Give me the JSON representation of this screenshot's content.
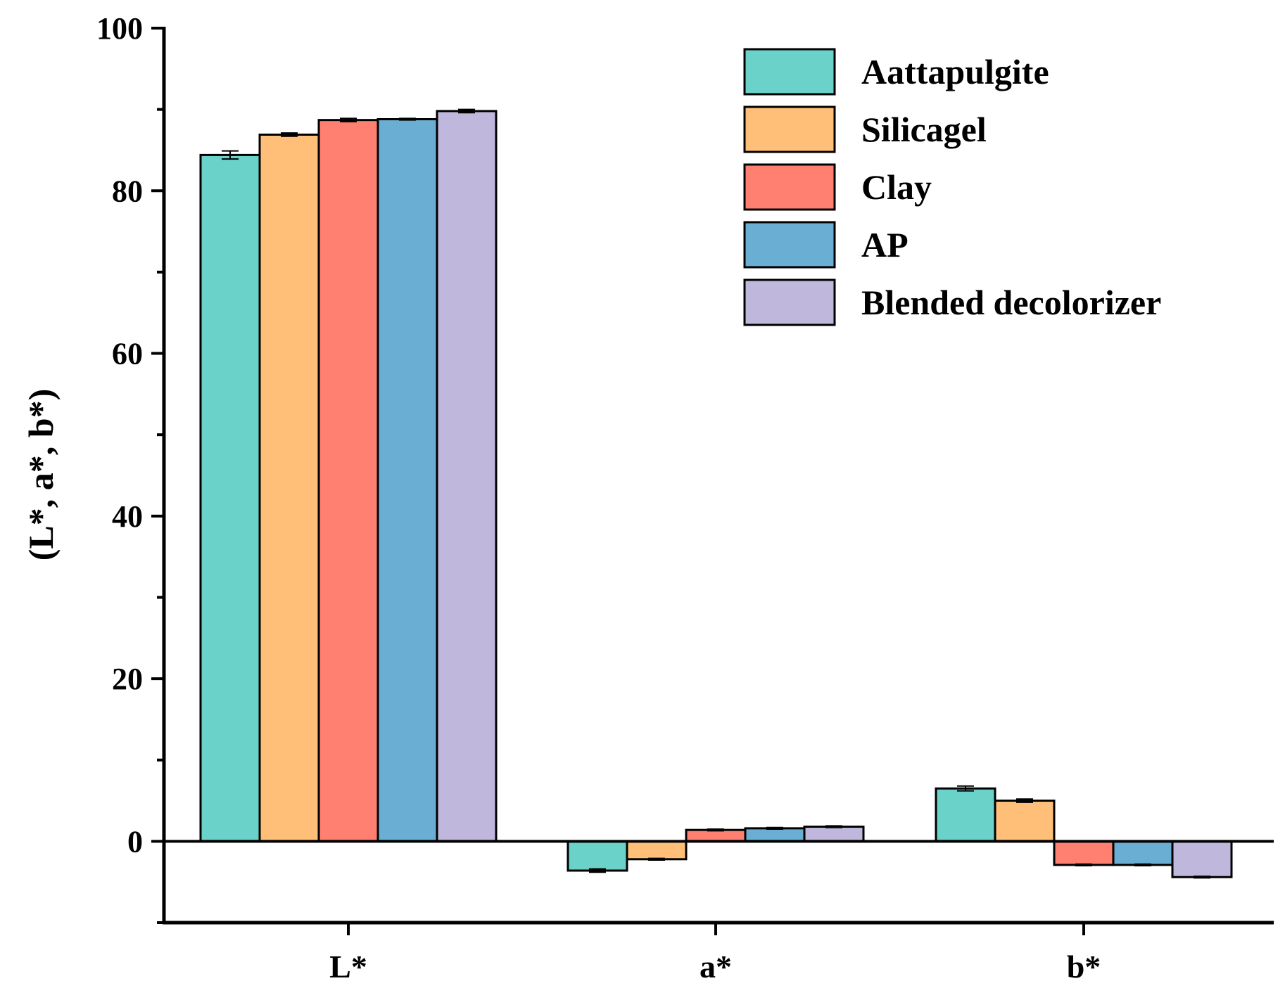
{
  "chart_data": {
    "type": "bar",
    "title": "",
    "xlabel": "",
    "ylabel": "(L*, a*, b*)",
    "categories": [
      "L*",
      "a*",
      "b*"
    ],
    "ylim": [
      -10,
      100
    ],
    "yticks": [
      0,
      20,
      40,
      60,
      80,
      100
    ],
    "grid": false,
    "legend_position": "top-right",
    "series": [
      {
        "name": "Aattapulgite",
        "color": "#6ad2c9",
        "values": [
          84.4,
          -3.6,
          6.5
        ],
        "errors": [
          0.5,
          0.2,
          0.3
        ]
      },
      {
        "name": "Silicagel",
        "color": "#ffbf78",
        "values": [
          86.9,
          -2.2,
          5.0
        ],
        "errors": [
          0.2,
          0.1,
          0.2
        ]
      },
      {
        "name": "Clay",
        "color": "#ff8070",
        "values": [
          88.7,
          1.4,
          -2.9
        ],
        "errors": [
          0.2,
          0.1,
          0.1
        ]
      },
      {
        "name": "AP",
        "color": "#6aafd3",
        "values": [
          88.8,
          1.6,
          -2.9
        ],
        "errors": [
          0.1,
          0.1,
          0.1
        ]
      },
      {
        "name": "Blended decolorizer",
        "color": "#c0b7dd",
        "values": [
          89.8,
          1.8,
          -4.4
        ],
        "errors": [
          0.2,
          0.1,
          0.1
        ]
      }
    ]
  }
}
